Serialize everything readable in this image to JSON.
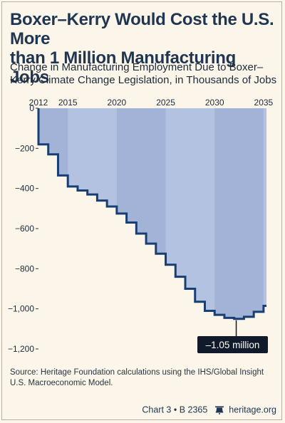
{
  "headline": {
    "line1": "Boxer–Kerry Would Cost the U.S. More",
    "line2": "than 1 Million Manufacturing Jobs"
  },
  "subtitle": {
    "line1": "Change in Manufacturing Employment Due to Boxer–",
    "line2": "Kerry Climate Change Legislation, in Thousands of Jobs"
  },
  "chart_data": {
    "type": "area",
    "style": "step",
    "x": [
      2012,
      2013,
      2014,
      2015,
      2016,
      2017,
      2018,
      2019,
      2020,
      2021,
      2022,
      2023,
      2024,
      2025,
      2026,
      2027,
      2028,
      2029,
      2030,
      2031,
      2032,
      2033,
      2034,
      2035
    ],
    "values": [
      -180,
      -230,
      -335,
      -390,
      -410,
      -430,
      -460,
      -490,
      -525,
      -570,
      -625,
      -675,
      -725,
      -780,
      -840,
      -900,
      -965,
      -1010,
      -1030,
      -1045,
      -1050,
      -1040,
      -1015,
      -985
    ],
    "xticks": [
      2012,
      2015,
      2020,
      2025,
      2030,
      2035
    ],
    "yticks": [
      0,
      -200,
      -400,
      -600,
      -800,
      -1000,
      -1200
    ],
    "ytick_labels": [
      "0",
      "-200",
      "-400",
      "-600",
      "-800",
      "-1,000",
      "-1,200"
    ],
    "xlim": [
      2012,
      2035.3
    ],
    "ylim": [
      -1200,
      0
    ],
    "xlabel": "",
    "ylabel": "",
    "annotation": {
      "text": "–1.05 million",
      "x": 2032,
      "y": -1050
    },
    "colors": {
      "fill": "#b3c2e0",
      "band": "#a3b3d8",
      "line": "#173f74",
      "label_box": "#101a2a"
    }
  },
  "source": {
    "label": "Source:",
    "text": "Heritage Foundation calculations using the IHS/Global Insight U.S. Macroeconomic Model."
  },
  "footer": {
    "chart_ref": "Chart 3 • B 2365",
    "site": "heritage.org"
  }
}
